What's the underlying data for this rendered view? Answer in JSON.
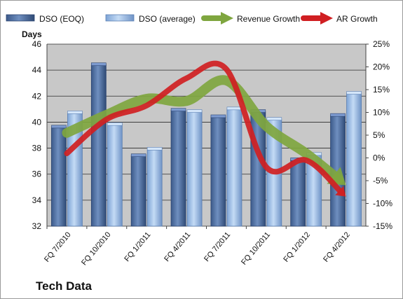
{
  "colors": {
    "dso_eoq": "#4f6fa0",
    "dso_avg": "#9bbde6",
    "revenue_growth": "#7fa63f",
    "ar_growth": "#d01f22",
    "plot_bg": "#c8c8c8",
    "gridline": "#2b2b2b"
  },
  "chart_data": {
    "type": "bar",
    "title": "Tech Data",
    "ylabel": "Days",
    "ylim": [
      32,
      46
    ],
    "y_ticks": [
      "46",
      "44",
      "42",
      "40",
      "38",
      "36",
      "34",
      "32"
    ],
    "y2lim": [
      -15,
      25
    ],
    "y2_ticks": [
      "25%",
      "20%",
      "15%",
      "10%",
      "5%",
      "0%",
      "-5%",
      "-10%",
      "-15%"
    ],
    "categories": [
      "FQ 7/2010",
      "FQ 10/2010",
      "FQ 1/2011",
      "FQ 4/2011",
      "FQ 7/2011",
      "FQ 10/2011",
      "FQ 1/2012",
      "FQ 4/2012"
    ],
    "series": [
      {
        "name": "DSO (EOQ)",
        "type": "bar",
        "axis": "left",
        "values": [
          39.6,
          44.4,
          37.4,
          40.9,
          40.4,
          40.8,
          37.1,
          40.5
        ]
      },
      {
        "name": "DSO (average)",
        "type": "bar",
        "axis": "left",
        "values": [
          40.7,
          39.8,
          37.9,
          40.8,
          41.0,
          40.2,
          37.5,
          42.2
        ]
      },
      {
        "name": "Revenue Growth",
        "type": "line",
        "axis": "right",
        "unit": "%",
        "values": [
          5.5,
          9.5,
          13.0,
          12.5,
          17.0,
          7.0,
          1.0,
          -6.0
        ]
      },
      {
        "name": "AR Growth",
        "type": "line",
        "axis": "right",
        "unit": "%",
        "values": [
          1.0,
          8.5,
          11.5,
          17.5,
          19.5,
          -2.0,
          -0.5,
          -8.5
        ]
      }
    ],
    "grid": true,
    "legend": "top"
  }
}
